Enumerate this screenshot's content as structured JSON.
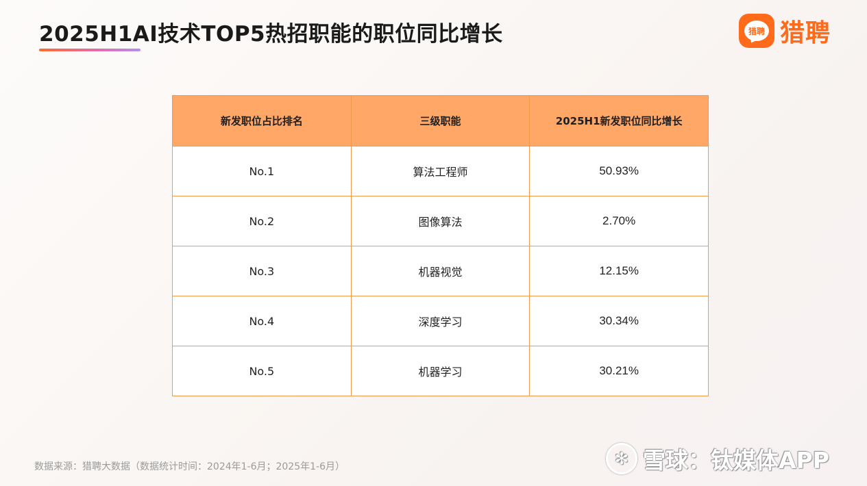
{
  "header": {
    "title": "2025H1AI技术TOP5热招职能的职位同比增长",
    "logo_icon": "liepin-logo-icon",
    "logo_badge": "猎聘",
    "logo_text": "猎聘",
    "brand_color": "#ff6b1a"
  },
  "table": {
    "headers": [
      "新发职位占比排名",
      "三级职能",
      "2025H1新发职位同比增长"
    ],
    "rows": [
      {
        "rank": "No.1",
        "function": "算法工程师",
        "growth": "50.93%"
      },
      {
        "rank": "No.2",
        "function": "图像算法",
        "growth": "2.70%"
      },
      {
        "rank": "No.3",
        "function": "机器视觉",
        "growth": "12.15%"
      },
      {
        "rank": "No.4",
        "function": "深度学习",
        "growth": "30.34%"
      },
      {
        "rank": "No.5",
        "function": "机器学习",
        "growth": "30.21%"
      }
    ],
    "header_color": "#ffa766",
    "border_color": "#f29a4a"
  },
  "footer": {
    "source": "数据来源：猎聘大数据（数据统计时间：2024年1-6月；2025年1-6月）",
    "watermark_icon": "xueqiu-icon",
    "watermark": "雪球：钛媒体APP"
  }
}
